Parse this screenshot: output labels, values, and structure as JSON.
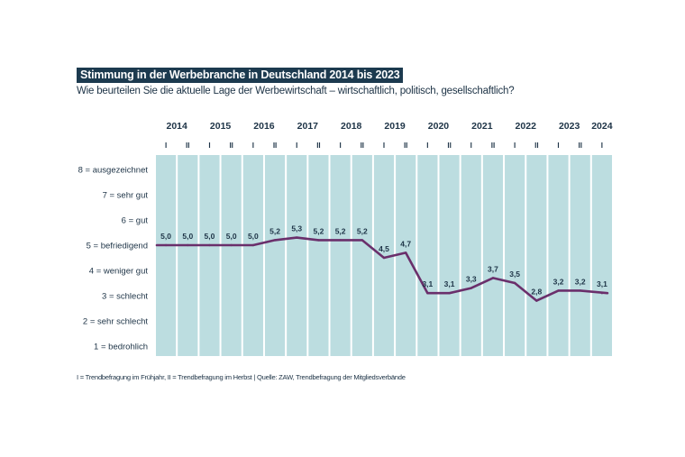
{
  "colors": {
    "title_bg": "#1c3a4f",
    "column_fill": "#bcdde0",
    "line": "#6a2f6b",
    "text": "#1d3346"
  },
  "chart_data": {
    "type": "line",
    "title": "Stimmung in der Werbebranche in Deutschland 2014 bis 2023",
    "subtitle": "Wie beurteilen Sie die aktuelle Lage der Werbewirtschaft – wirtschaftlich, politisch, gesellschaftlich?",
    "footnote": "I = Trendbefragung im Frühjahr, II = Trendbefragung im Herbst | Quelle: ZAW, Trendbefragung der Mitgliedsverbände",
    "xlabel": "",
    "ylabel": "",
    "ylim": [
      1,
      8
    ],
    "grid": false,
    "legend": "none",
    "years": [
      "2014",
      "2015",
      "2016",
      "2017",
      "2018",
      "2019",
      "2020",
      "2021",
      "2022",
      "2023",
      "2024"
    ],
    "x": [
      "2014 I",
      "2014 II",
      "2015 I",
      "2015 II",
      "2016 I",
      "2016 II",
      "2017 I",
      "2017 II",
      "2018 I",
      "2018 II",
      "2019 I",
      "2019 II",
      "2020 I",
      "2020 II",
      "2021 I",
      "2021 II",
      "2022 I",
      "2022 II",
      "2023 I",
      "2023 II",
      "2024 I"
    ],
    "half_labels": [
      "I",
      "II",
      "I",
      "II",
      "I",
      "II",
      "I",
      "II",
      "I",
      "II",
      "I",
      "II",
      "I",
      "II",
      "I",
      "II",
      "I",
      "II",
      "I",
      "II",
      "I"
    ],
    "series": [
      {
        "name": "Stimmung",
        "values": [
          5.0,
          5.0,
          5.0,
          5.0,
          5.0,
          5.2,
          5.3,
          5.2,
          5.2,
          5.2,
          4.5,
          4.7,
          3.1,
          3.1,
          3.3,
          3.7,
          3.5,
          2.8,
          3.2,
          3.2,
          3.1
        ],
        "labels": [
          "5,0",
          "5,0",
          "5,0",
          "5,0",
          "5,0",
          "5,2",
          "5,3",
          "5,2",
          "5,2",
          "5,2",
          "4,5",
          "4,7",
          "3,1",
          "3,1",
          "3,3",
          "3,7",
          "3,5",
          "2,8",
          "3,2",
          "3,2",
          "3,1"
        ]
      }
    ],
    "y_ticks": [
      {
        "value": 8,
        "label": "8 = ausgezeichnet"
      },
      {
        "value": 7,
        "label": "7 = sehr gut"
      },
      {
        "value": 6,
        "label": "6 = gut"
      },
      {
        "value": 5,
        "label": "5 = befriedigend"
      },
      {
        "value": 4,
        "label": "4 = weniger gut"
      },
      {
        "value": 3,
        "label": "3 = schlecht"
      },
      {
        "value": 2,
        "label": "2 = sehr schlecht"
      },
      {
        "value": 1,
        "label": "1 = bedrohlich"
      }
    ]
  }
}
